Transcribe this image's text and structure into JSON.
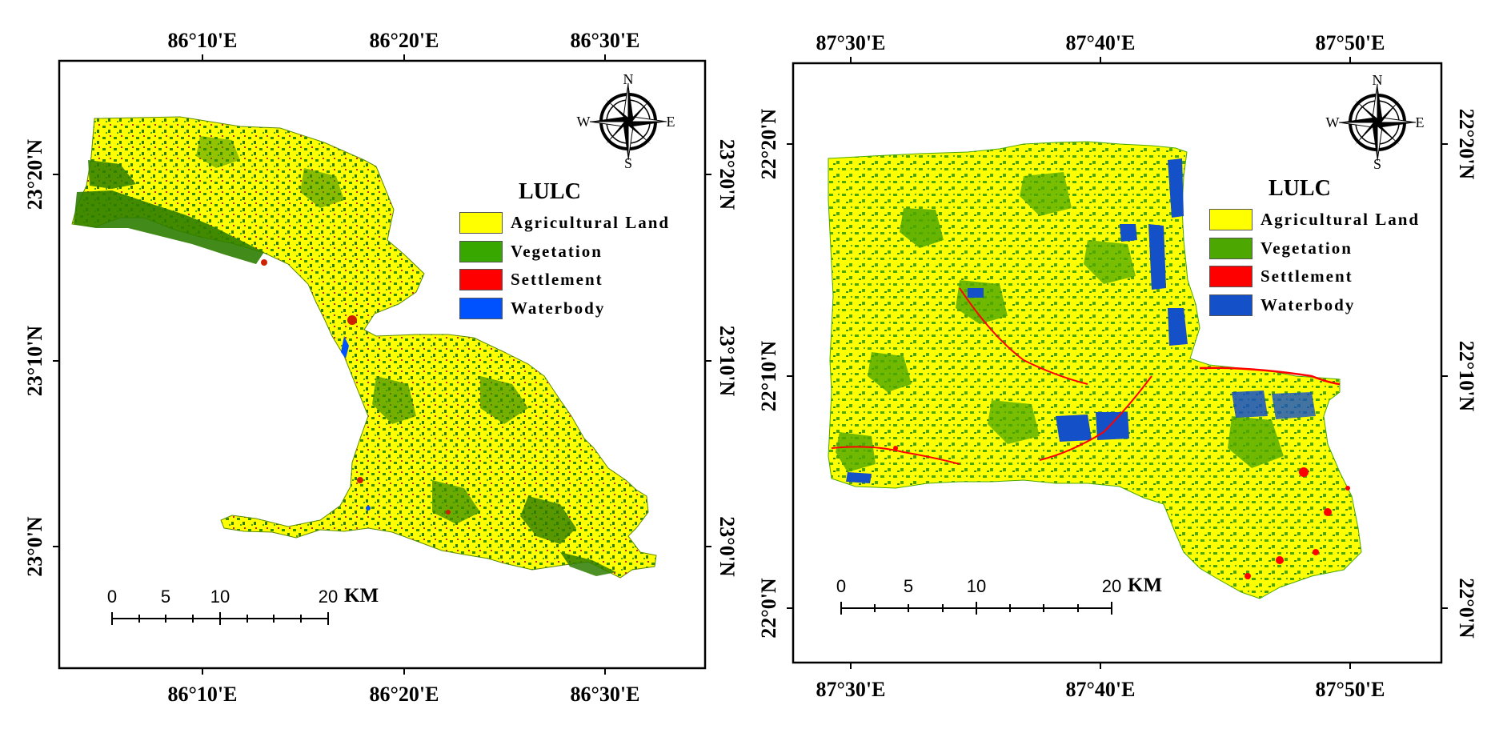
{
  "maps": [
    {
      "id": "left",
      "x_labels": [
        "86°10'E",
        "86°20'E",
        "86°30'E"
      ],
      "y_labels": [
        "23°20'N",
        "23°10'N",
        "23°0'N"
      ],
      "legend": {
        "title": "LULC",
        "items": [
          {
            "label": "Agricultural  Land",
            "color": "#ffff00"
          },
          {
            "label": "Vegetation",
            "color": "#38a800"
          },
          {
            "label": "Settlement",
            "color": "#ff0000"
          },
          {
            "label": "Waterbody",
            "color": "#0052ff"
          }
        ]
      },
      "compass": {
        "n": "N",
        "s": "S",
        "e": "E",
        "w": "W"
      },
      "scale": {
        "ticks": [
          "0",
          "5",
          "10",
          "20"
        ],
        "unit": "KM"
      }
    },
    {
      "id": "right",
      "x_labels": [
        "87°30'E",
        "87°40'E",
        "87°50'E"
      ],
      "y_labels": [
        "22°20'N",
        "22°10'N",
        "22°0'N"
      ],
      "legend": {
        "title": "LULC",
        "items": [
          {
            "label": "Agricultural  Land",
            "color": "#ffff00"
          },
          {
            "label": "Vegetation",
            "color": "#4ca800"
          },
          {
            "label": "Settlement",
            "color": "#ff0000"
          },
          {
            "label": "Waterbody",
            "color": "#1450c8"
          }
        ]
      },
      "compass": {
        "n": "N",
        "s": "S",
        "e": "E",
        "w": "W"
      },
      "scale": {
        "ticks": [
          "0",
          "5",
          "10",
          "20"
        ],
        "unit": "KM"
      }
    }
  ],
  "colors": {
    "agriculture": "#ffff00",
    "vegetation_dark": "#2e7d00",
    "vegetation": "#4ca800",
    "settlement": "#ff0000",
    "water": "#1450c8"
  }
}
